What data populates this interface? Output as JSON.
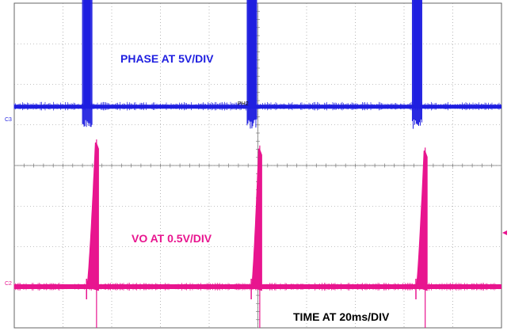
{
  "chart_data": {
    "type": "line",
    "title": "",
    "grid": true,
    "grid_divisions": {
      "x": 10,
      "y": 8
    },
    "x_unit": "div",
    "x_range": [
      0,
      10
    ],
    "annotations": {
      "phase": "PHASE AT 5V/DIV",
      "vo": "VO AT 0.5V/DIV",
      "time": "TIME AT 20ms/DIV"
    },
    "channel_markers": {
      "phase": "C3",
      "vo": "C2",
      "cursor": "PH2"
    },
    "series": [
      {
        "name": "PHASE",
        "color": "#1f1fe0",
        "baseline_div": 1.45,
        "pulses": [
          {
            "start_div": 1.4,
            "end_div": 1.6,
            "peak_div": 6.6
          },
          {
            "start_div": 4.78,
            "end_div": 4.98,
            "peak_div": 6.6
          },
          {
            "start_div": 8.17,
            "end_div": 8.37,
            "peak_div": 6.6
          }
        ]
      },
      {
        "name": "VO",
        "color": "#e8158f",
        "baseline_div": 0.0,
        "ramps": [
          {
            "start_div": 1.5,
            "end_div": 1.73,
            "peak_div": 3.55
          },
          {
            "start_div": 4.88,
            "end_div": 5.07,
            "peak_div": 3.4
          },
          {
            "start_div": 8.26,
            "end_div": 8.47,
            "peak_div": 3.35
          }
        ]
      }
    ]
  },
  "colors": {
    "phase": "#1f1fe0",
    "vo": "#e8158f",
    "grid": "#888888",
    "trigger_marker": "#e8158f"
  }
}
